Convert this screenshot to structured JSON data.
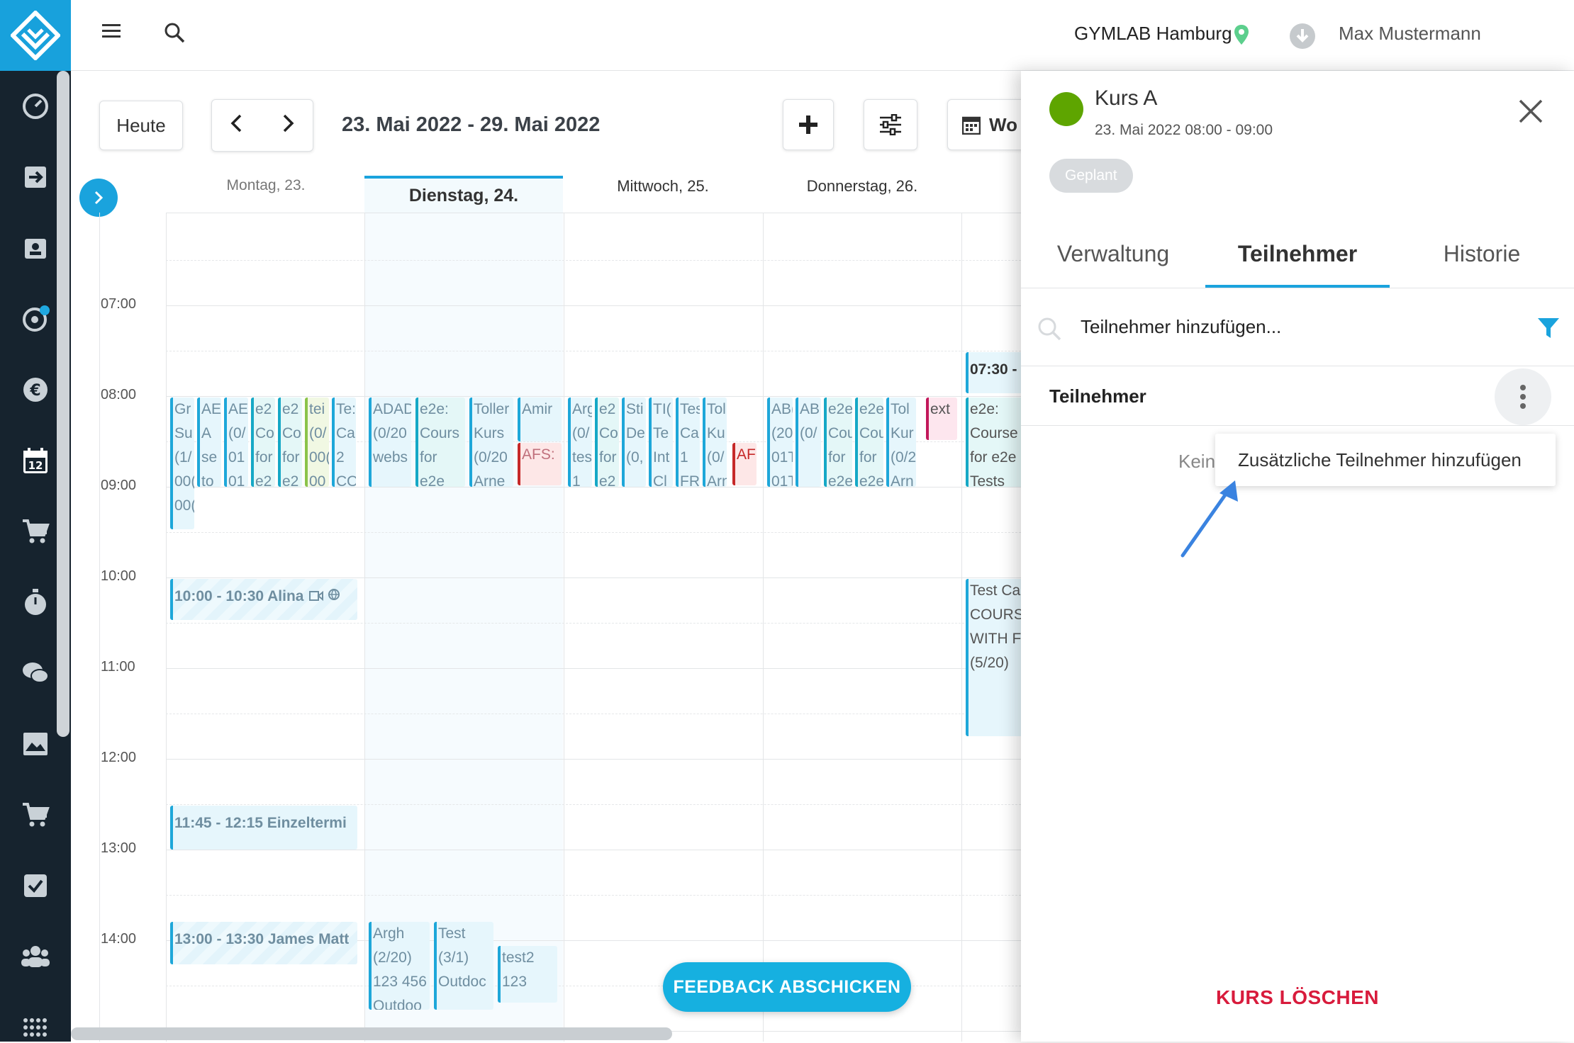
{
  "header": {
    "location": "GYMLAB Hamburg",
    "user": "Max Mustermann"
  },
  "sidebar": {
    "icons": [
      "dashboard-icon",
      "checkin-icon",
      "contacts-icon",
      "settings-icon",
      "finance-icon",
      "calendar-icon",
      "shop-icon",
      "timer-icon",
      "chat-icon",
      "gallery-icon",
      "cart-icon",
      "tasks-icon",
      "members-icon",
      "apps-icon"
    ],
    "calendar_day": "12"
  },
  "toolbar": {
    "today": "Heute",
    "range": "23. Mai 2022 - 29. Mai 2022",
    "view": "Wo"
  },
  "days": [
    "Montag, 23.",
    "Dienstag, 24.",
    "Mittwoch, 25.",
    "Donnerstag, 26."
  ],
  "times": [
    "07:00",
    "08:00",
    "09:00",
    "10:00",
    "11:00",
    "12:00",
    "13:00",
    "14:00"
  ],
  "events": {
    "e1": "Gr\nSu\n(1/\n00(\n00(",
    "e2": "AE\nA\nse\nto",
    "e3": "AE\n(0/\n01\n01",
    "e4": "e2\nCo\nfor\ne2",
    "e5": "e2\nCo\nfor\ne2",
    "e6": "tei\n(0/\n00(\n00",
    "e7": "Te:\nCa\n2\nCO",
    "e8": "10:00 - 10:30 Alina",
    "e9": "11:45 - 12:15 Einzeltermi",
    "e10": "13:00 - 13:30 James Matt",
    "e11": "ADAD\n(0/20\nwebs\n",
    "e12": "e2e:\nCours\nfor\ne2e",
    "e13": "Toller\nKurs\n(0/20\nArne",
    "e14": "Amir",
    "e15": "AFS:",
    "e16": "Argh\n(2/20)\n123 456\nOutdoo",
    "e17": "Test\n(3/1)\nOutdoc",
    "e18": "test2\n123\n",
    "e19": "Arg\n(0/\ntes\n1",
    "e20": "e2\nCo\nfor\ne2",
    "e21": "Sti\nDe\n(0,\n",
    "e22": "TI(\nTe\nInt\nCl",
    "e23": "Tes\nCa\n1\nFR",
    "e24": "Tol\nKu\n(0/\nArn",
    "e25": "AF",
    "e26": "AB(\n(20\n01T\n01T",
    "e27": "AB\n(0/\n",
    "e28": "e2e\nCou\nfor\ne2e",
    "e29": "e2e\nCou\nfor\ne2e",
    "e30": "Tol\nKur\n(0/2\nArn",
    "e31": "ext",
    "e32": "07:30 -",
    "e33": "e2e:\nCourse\nfor e2e\nTests",
    "e34": "Test Ca\nCOURS\nWITH F\n(5/20)"
  },
  "panel": {
    "title": "Kurs A",
    "datetime": "23. Mai 2022 08:00 - 09:00",
    "status": "Geplant",
    "tabs": [
      "Verwaltung",
      "Teilnehmer",
      "Historie"
    ],
    "search_placeholder": "Teilnehmer hinzufügen...",
    "section": "Teilnehmer",
    "empty_partial": "Kein",
    "menu_item": "Zusätzliche Teilnehmer hinzufügen",
    "delete": "KURS LÖSCHEN"
  },
  "feedback": "FEEDBACK ABSCHICKEN",
  "colors": {
    "accent": "#18a1dc",
    "status_green": "#5ea500",
    "danger": "#d81b3c",
    "sidebar_bg": "#16232e"
  }
}
